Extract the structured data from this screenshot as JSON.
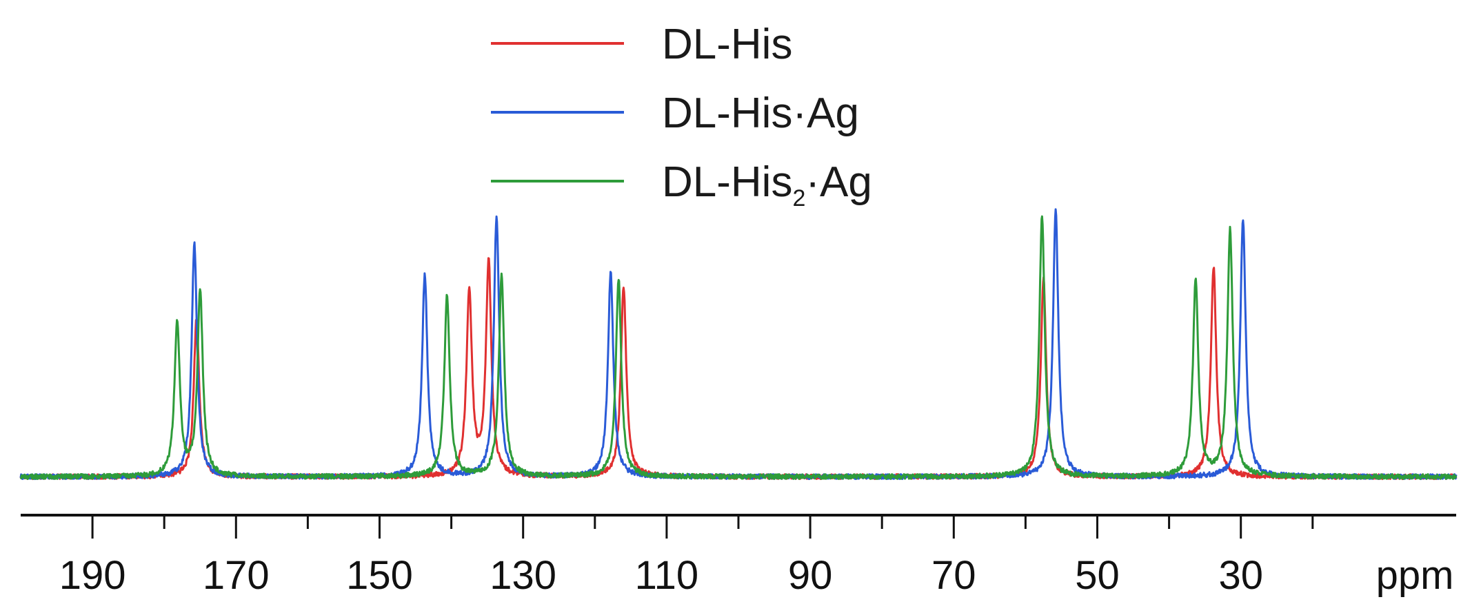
{
  "chart_data": {
    "type": "line",
    "title": "",
    "xlabel": "ppm",
    "ylabel": "",
    "x_reversed": true,
    "xlim": [
      200,
      0
    ],
    "x_ticks_major": [
      190,
      170,
      150,
      130,
      110,
      90,
      70,
      50,
      30
    ],
    "x_ticks_minor": [
      180,
      160,
      140,
      120,
      100,
      80,
      60,
      40,
      20
    ],
    "grid": false,
    "legend_position": "top-center",
    "legend": {
      "dl_his": "DL-His",
      "dl_his_ag_prefix": "DL-His·Ag",
      "dl_his2_ag_prefix": "DL-His",
      "dl_his2_ag_sub": "2",
      "dl_his2_ag_suffix": "·Ag"
    },
    "series": [
      {
        "name": "DL-His",
        "color": "#e03030",
        "baseline": 0.02,
        "peaks": [
          {
            "ppm": 175.5,
            "height": 0.6
          },
          {
            "ppm": 137.5,
            "height": 0.7
          },
          {
            "ppm": 134.8,
            "height": 0.81
          },
          {
            "ppm": 116.0,
            "height": 0.72
          },
          {
            "ppm": 57.5,
            "height": 0.75
          },
          {
            "ppm": 33.8,
            "height": 0.79
          }
        ]
      },
      {
        "name": "DL-His·Ag",
        "color": "#2a5bd7",
        "baseline": 0.02,
        "peaks": [
          {
            "ppm": 175.8,
            "height": 0.88
          },
          {
            "ppm": 143.7,
            "height": 0.76
          },
          {
            "ppm": 133.7,
            "height": 0.98
          },
          {
            "ppm": 117.8,
            "height": 0.77
          },
          {
            "ppm": 55.8,
            "height": 1.0
          },
          {
            "ppm": 29.7,
            "height": 0.97
          }
        ]
      },
      {
        "name": "DL-His₂·Ag",
        "color": "#2e9c3a",
        "baseline": 0.02,
        "peaks": [
          {
            "ppm": 178.2,
            "height": 0.58
          },
          {
            "ppm": 175.0,
            "height": 0.7
          },
          {
            "ppm": 140.6,
            "height": 0.68
          },
          {
            "ppm": 133.0,
            "height": 0.76
          },
          {
            "ppm": 116.7,
            "height": 0.75
          },
          {
            "ppm": 57.7,
            "height": 0.99
          },
          {
            "ppm": 36.3,
            "height": 0.74
          },
          {
            "ppm": 31.5,
            "height": 0.93
          }
        ]
      }
    ]
  }
}
